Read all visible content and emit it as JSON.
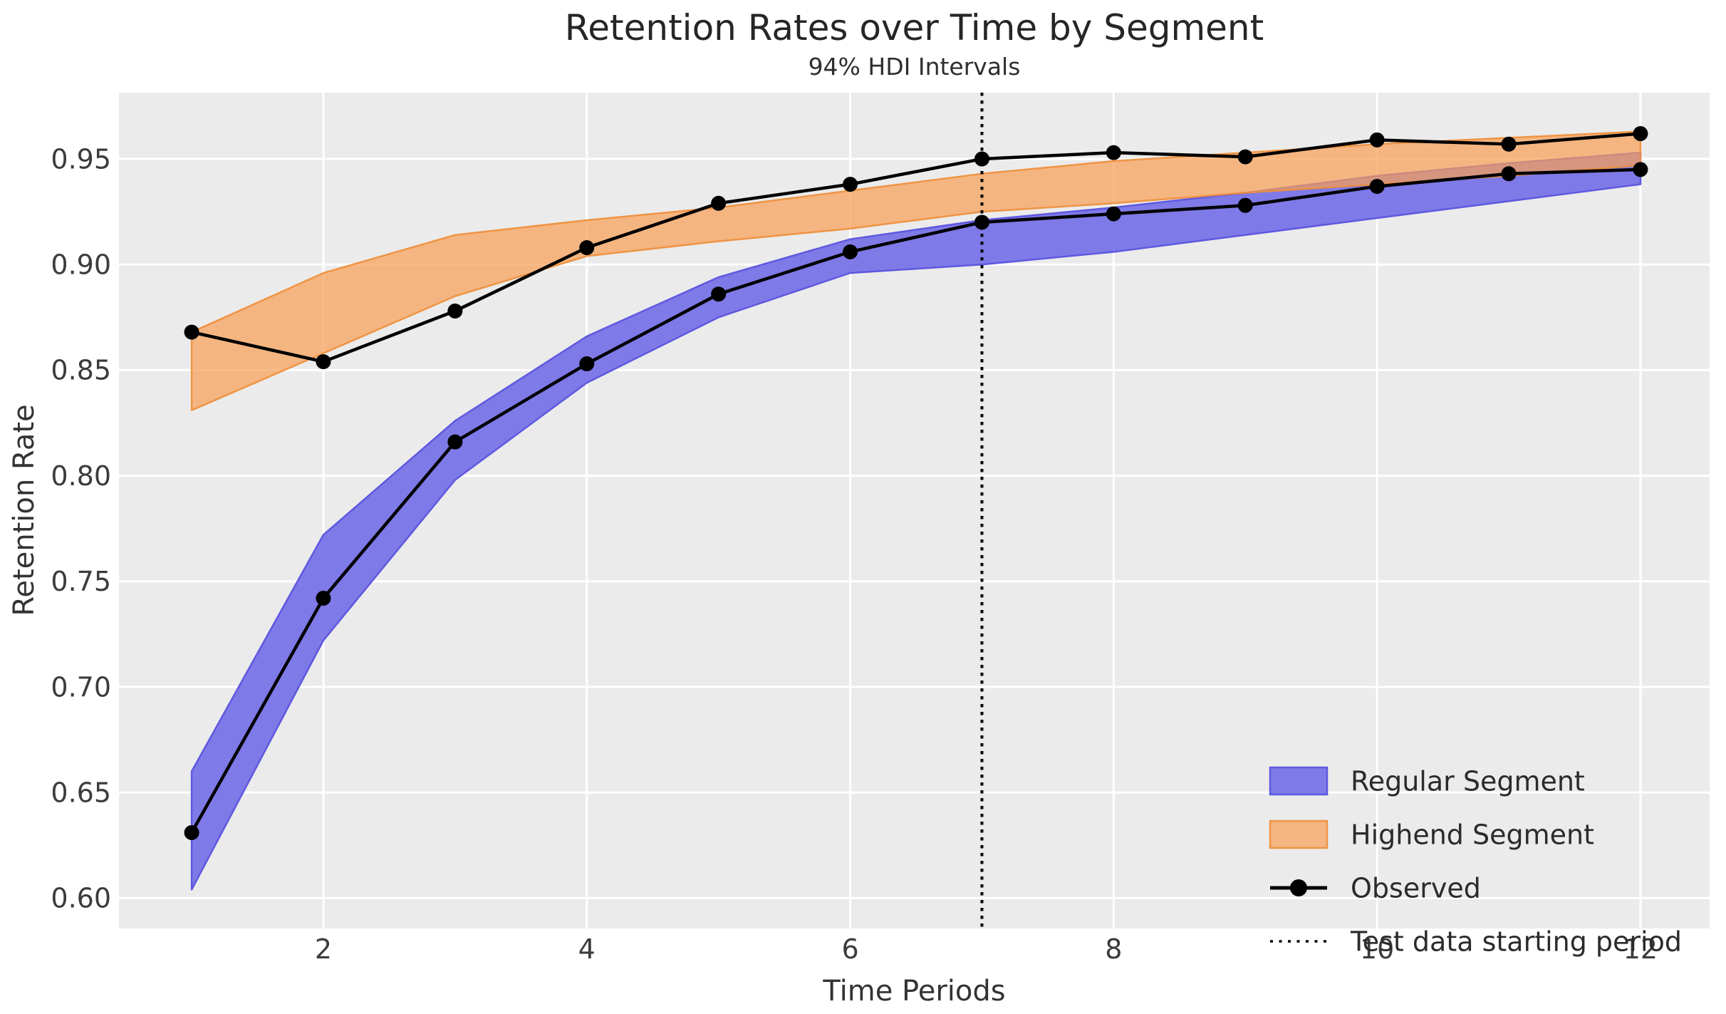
{
  "chart_data": {
    "type": "line",
    "title": "Retention Rates over Time by Segment",
    "subtitle": "94% HDI Intervals",
    "xlabel": "Time Periods",
    "ylabel": "Retention Rate",
    "x": [
      1,
      2,
      3,
      4,
      5,
      6,
      7,
      8,
      9,
      10,
      11,
      12
    ],
    "xticks": [
      2,
      4,
      6,
      8,
      10,
      12
    ],
    "xtick_labels": [
      "2",
      "4",
      "6",
      "8",
      "10",
      "12"
    ],
    "yticks": [
      0.6,
      0.65,
      0.7,
      0.75,
      0.8,
      0.85,
      0.9,
      0.95
    ],
    "ytick_labels": [
      "0.60",
      "0.65",
      "0.70",
      "0.75",
      "0.80",
      "0.85",
      "0.90",
      "0.95"
    ],
    "xlim": [
      0.448,
      12.525
    ],
    "ylim": [
      0.5856,
      0.9814
    ],
    "grid": true,
    "test_data_start_period": 7,
    "series": [
      {
        "name": "Regular Segment 94% HDI",
        "kind": "band",
        "color_key": "regular",
        "lo": [
          0.604,
          0.722,
          0.798,
          0.844,
          0.875,
          0.896,
          0.9,
          0.906,
          0.914,
          0.922,
          0.93,
          0.938
        ],
        "hi": [
          0.66,
          0.772,
          0.826,
          0.866,
          0.894,
          0.912,
          0.921,
          0.927,
          0.934,
          0.942,
          0.948,
          0.953
        ]
      },
      {
        "name": "Highend Segment 94% HDI",
        "kind": "band",
        "color_key": "highend",
        "lo": [
          0.831,
          0.858,
          0.885,
          0.904,
          0.911,
          0.917,
          0.925,
          0.929,
          0.934,
          0.938,
          0.942,
          0.947
        ],
        "hi": [
          0.868,
          0.896,
          0.914,
          0.921,
          0.927,
          0.935,
          0.943,
          0.949,
          0.953,
          0.957,
          0.96,
          0.963
        ]
      },
      {
        "name": "Observed Regular",
        "kind": "line_markers",
        "color_key": "observed",
        "values": [
          0.631,
          0.742,
          0.816,
          0.853,
          0.886,
          0.906,
          0.92,
          0.924,
          0.928,
          0.937,
          0.943,
          0.945
        ]
      },
      {
        "name": "Observed Highend",
        "kind": "line_markers",
        "color_key": "observed",
        "values": [
          0.868,
          0.854,
          0.878,
          0.908,
          0.929,
          0.938,
          0.95,
          0.953,
          0.951,
          0.959,
          0.957,
          0.962
        ]
      }
    ],
    "legend": {
      "position": "lower right",
      "entries": [
        {
          "label": "Regular Segment",
          "swatch": "patch",
          "color_key": "regular"
        },
        {
          "label": "Highend Segment",
          "swatch": "patch",
          "color_key": "highend"
        },
        {
          "label": "Observed",
          "swatch": "line_marker",
          "color_key": "observed"
        },
        {
          "label": "Test data starting period",
          "swatch": "dotted_line",
          "color_key": "observed"
        }
      ]
    },
    "colors": {
      "figure_bg": "#ffffff",
      "plot_bg": "#ebebeb",
      "grid": "#ffffff",
      "regular_fill": "#7e7ae7",
      "regular_edge": "#5f58e0",
      "highend_fill": "rgba(246,160,88,0.72)",
      "highend_edge": "rgba(238,142,56,0.9)",
      "observed": "#000000",
      "tick_text": "#3c3c3c",
      "title_text": "#262626"
    }
  }
}
